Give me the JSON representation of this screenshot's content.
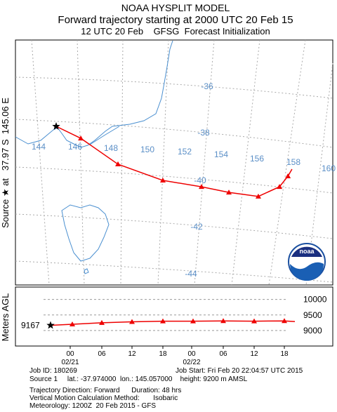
{
  "header": {
    "line1": "NOAA HYSPLIT MODEL",
    "line2": "Forward trajectory starting at 2000 UTC 20 Feb 15",
    "line3": "12 UTC 20 Feb    GFSG  Forecast Initialization"
  },
  "map": {
    "source_label": "Source ★ at   37.97 S  145.06 E",
    "lon_labels": [
      144,
      146,
      148,
      150,
      152,
      154,
      156,
      158,
      160
    ],
    "lat_labels": [
      -36,
      -38,
      -40,
      -42,
      -44
    ],
    "trajectory": {
      "lon": [
        145.06,
        146.4,
        148.42,
        150.86,
        152.96,
        154.45,
        156.05,
        157.2,
        157.66,
        157.88
      ],
      "lat": [
        -37.97,
        -38.48,
        -39.58,
        -40.27,
        -40.54,
        -40.78,
        -40.95,
        -40.54,
        -40.09,
        -39.79
      ]
    }
  },
  "height_panel": {
    "ylabel": "Meters AGL",
    "ylim": [
      8500,
      10400
    ],
    "yticks": [
      9000,
      9500,
      10000
    ],
    "heights": [
      9167,
      9200,
      9250,
      9280,
      9300,
      9300,
      9310,
      9300,
      9310,
      9290
    ],
    "xticks": [
      "00",
      "06",
      "12",
      "18",
      "00",
      "06",
      "12",
      "18"
    ],
    "dates": [
      "02/21",
      "02/22"
    ]
  },
  "footer": {
    "job_id": "Job ID: 180269",
    "job_start": "Job Start: Fri Feb 20 22:04:57 UTC 2015",
    "source": "Source 1     lat.: -37.974000  lon.: 145.057000    height: 9200 m AMSL",
    "direction": "Trajectory Direction: Forward      Duration: 48 hrs",
    "method": "Vertical Motion Calculation Method:       Isobaric",
    "meteorology": "Meteorology: 1200Z  20 Feb 2015 - GFS"
  }
}
